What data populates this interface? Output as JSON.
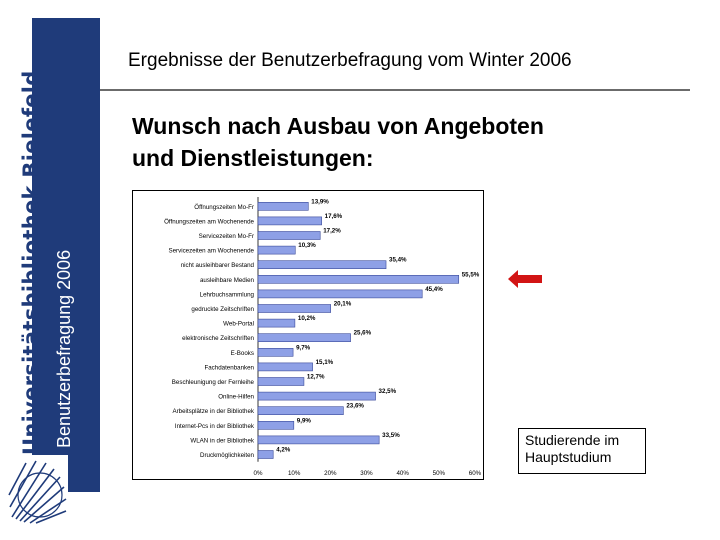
{
  "sidebar": {
    "institution": "Universitätsbibliothek Bielefeld",
    "band_label": "Benutzerbefragung 2006",
    "band_color": "#1f3b7a"
  },
  "header": {
    "title": "Ergebnisse der Benutzerbefragung vom Winter 2006"
  },
  "main": {
    "title_line1": "Wunsch nach Ausbau von Angeboten",
    "title_line2": "und Dienstleistungen:"
  },
  "legend": {
    "line1": "Studierende im",
    "line2": "Hauptstudium"
  },
  "colors": {
    "bar_fill": "#8ea0e6",
    "bar_stroke": "#3a4a9a",
    "arrow": "#d21414"
  },
  "chart_data": {
    "type": "bar",
    "orientation": "horizontal",
    "categories": [
      "Öffnungszeiten Mo-Fr",
      "Öffnungszeiten am Wochenende",
      "Servicezeiten Mo-Fr",
      "Servicezeiten am Wochenende",
      "nicht ausleihbarer Bestand",
      "ausleihbare Medien",
      "Lehrbuchsammlung",
      "gedruckte Zeitschriften",
      "Web-Portal",
      "elektronische Zeitschriften",
      "E-Books",
      "Fachdatenbanken",
      "Beschleunigung der Fernleihe",
      "Online-Hilfen",
      "Arbeitsplätze in der Bibliothek",
      "Internet-Pcs in der Bibliothek",
      "WLAN in der Bibliothek",
      "Druckmöglichkeiten"
    ],
    "values": [
      13.9,
      17.6,
      17.2,
      10.3,
      35.4,
      55.5,
      45.4,
      20.1,
      10.2,
      25.6,
      9.7,
      15.1,
      12.7,
      32.5,
      23.6,
      9.9,
      33.5,
      4.2
    ],
    "value_labels": [
      "13,9%",
      "17,6%",
      "17,2%",
      "10,3%",
      "35,4%",
      "55,5%",
      "45,4%",
      "20,1%",
      "10,2%",
      "25,6%",
      "9,7%",
      "15,1%",
      "12,7%",
      "32,5%",
      "23,6%",
      "9,9%",
      "33,5%",
      "4,2%"
    ],
    "xticks": [
      "0%",
      "10%",
      "20%",
      "30%",
      "40%",
      "50%",
      "60%"
    ],
    "xlim": [
      0,
      60
    ],
    "title": "",
    "xlabel": "",
    "ylabel": "",
    "grid": false,
    "highlight_category": "ausleihbare Medien"
  }
}
